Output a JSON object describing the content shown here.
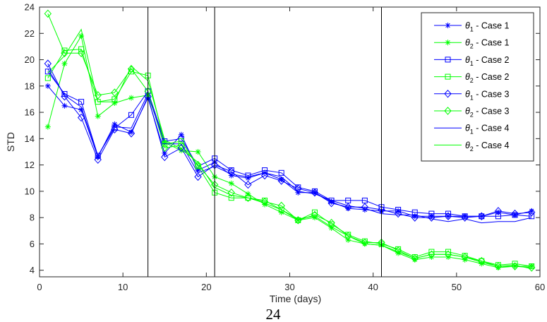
{
  "chart_data": {
    "type": "line",
    "title": "",
    "xlabel": "Time (days)",
    "ylabel": "STD",
    "xlim": [
      0,
      60
    ],
    "ylim": [
      3.5,
      24
    ],
    "xticks": [
      0,
      10,
      20,
      30,
      40,
      50,
      60
    ],
    "yticks": [
      4,
      6,
      8,
      10,
      12,
      14,
      16,
      18,
      20,
      22,
      24
    ],
    "grid": false,
    "legend_position": "top-right",
    "vertical_lines_x": [
      13,
      21,
      41
    ],
    "x": [
      1,
      3,
      5,
      7,
      9,
      11,
      13,
      15,
      17,
      19,
      21,
      23,
      25,
      27,
      29,
      31,
      33,
      35,
      37,
      39,
      41,
      43,
      45,
      47,
      49,
      51,
      53,
      55,
      57,
      59
    ],
    "series": [
      {
        "name": "θ1 - Case 1",
        "color": "#0000ff",
        "marker": "star",
        "values": [
          18.0,
          16.5,
          16.2,
          12.6,
          15.1,
          14.5,
          17.1,
          12.9,
          14.3,
          11.6,
          12.2,
          11.2,
          11.0,
          11.4,
          10.9,
          9.9,
          9.9,
          9.2,
          8.7,
          8.6,
          8.5,
          8.5,
          8.1,
          8.1,
          8.1,
          8.1,
          8.1,
          8.4,
          8.2,
          8.5
        ]
      },
      {
        "name": "θ2 - Case 1",
        "color": "#00ff00",
        "marker": "star",
        "values": [
          14.9,
          19.7,
          21.8,
          15.7,
          16.7,
          17.1,
          17.3,
          13.7,
          13.1,
          13.0,
          11.1,
          10.6,
          9.8,
          9.0,
          8.4,
          7.8,
          8.0,
          7.2,
          6.3,
          6.0,
          5.9,
          5.3,
          4.8,
          5.0,
          5.0,
          4.8,
          4.5,
          4.2,
          4.3,
          4.3
        ]
      },
      {
        "name": "θ1 - Case 2",
        "color": "#0000ff",
        "marker": "square",
        "values": [
          19.1,
          17.4,
          16.8,
          12.7,
          14.8,
          15.8,
          17.6,
          13.8,
          14.0,
          11.9,
          12.5,
          11.6,
          11.2,
          11.6,
          11.4,
          10.3,
          10.0,
          9.3,
          9.3,
          9.3,
          8.8,
          8.6,
          8.4,
          8.3,
          8.3,
          8.1,
          8.1,
          8.1,
          8.2,
          8.1
        ]
      },
      {
        "name": "θ2 - Case 2",
        "color": "#00ff00",
        "marker": "square",
        "values": [
          18.6,
          20.7,
          20.8,
          16.8,
          17.0,
          19.1,
          18.8,
          13.6,
          13.8,
          11.9,
          9.9,
          9.5,
          9.5,
          9.3,
          8.6,
          7.8,
          8.4,
          7.5,
          6.7,
          6.2,
          6.0,
          5.6,
          5.0,
          5.4,
          5.4,
          5.1,
          4.7,
          4.4,
          4.5,
          4.3
        ]
      },
      {
        "name": "θ1 - Case 3",
        "color": "#0000ff",
        "marker": "diamond",
        "values": [
          19.7,
          17.2,
          15.6,
          12.4,
          14.7,
          14.4,
          17.2,
          12.6,
          13.3,
          11.1,
          12.0,
          11.5,
          10.5,
          11.2,
          10.8,
          10.2,
          9.9,
          9.1,
          8.8,
          8.8,
          8.6,
          8.3,
          8.0,
          8.0,
          8.1,
          8.0,
          8.1,
          8.5,
          8.3,
          8.4
        ]
      },
      {
        "name": "θ2 - Case 3",
        "color": "#00ff00",
        "marker": "diamond",
        "values": [
          23.5,
          20.5,
          20.5,
          17.3,
          17.5,
          19.3,
          17.6,
          13.3,
          13.5,
          12.0,
          10.5,
          9.9,
          9.5,
          9.2,
          8.9,
          7.8,
          8.2,
          7.6,
          6.6,
          6.1,
          6.1,
          5.5,
          4.9,
          5.2,
          5.2,
          5.0,
          4.7,
          4.3,
          4.3,
          4.2
        ]
      },
      {
        "name": "θ1 - Case 4",
        "color": "#0000ff",
        "marker": "none",
        "values": [
          19.3,
          17.3,
          16.4,
          12.7,
          14.9,
          14.8,
          17.4,
          13.6,
          13.6,
          11.4,
          11.9,
          11.3,
          11.1,
          11.4,
          11.1,
          10.0,
          9.8,
          9.3,
          8.9,
          8.7,
          8.3,
          8.2,
          8.2,
          7.9,
          7.7,
          7.9,
          7.6,
          7.7,
          7.7,
          8.0
        ]
      },
      {
        "name": "θ2 - Case 4",
        "color": "#00ff00",
        "marker": "none",
        "values": [
          19.0,
          20.3,
          22.3,
          16.8,
          16.8,
          19.5,
          18.4,
          13.9,
          13.2,
          12.2,
          10.3,
          9.7,
          9.5,
          9.1,
          8.6,
          7.9,
          8.1,
          7.3,
          6.6,
          6.0,
          5.9,
          5.4,
          4.9,
          5.2,
          5.2,
          5.0,
          4.6,
          4.3,
          4.4,
          4.1
        ]
      }
    ]
  },
  "page_number": "24"
}
